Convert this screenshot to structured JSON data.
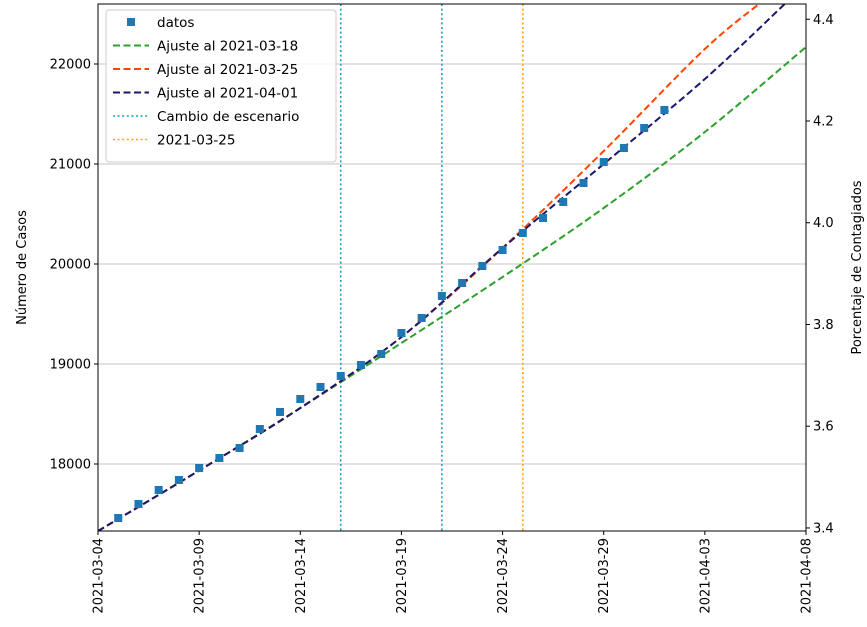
{
  "chart_data": {
    "type": "line",
    "title": "",
    "xlabel": "",
    "ylabel": "Número de Casos",
    "ylabel_right": "Porcentaje de Contagiados",
    "xlim": [
      "2021-03-04",
      "2021-04-08"
    ],
    "ylim": [
      17330,
      22600
    ],
    "ylim_right": [
      3.394,
      4.43
    ],
    "x_ticks": [
      "2021-03-04",
      "2021-03-09",
      "2021-03-14",
      "2021-03-19",
      "2021-03-24",
      "2021-03-29",
      "2021-04-03",
      "2021-04-08"
    ],
    "y_ticks": [
      18000,
      19000,
      20000,
      21000,
      22000
    ],
    "y_ticks_right": [
      3.4,
      3.6,
      3.8,
      4.0,
      4.2,
      4.4
    ],
    "grid": "horizontal",
    "legend_position": "top-left",
    "series": [
      {
        "name": "datos",
        "style": "markers",
        "color": "#1f77b4",
        "x": [
          "2021-03-05",
          "2021-03-06",
          "2021-03-07",
          "2021-03-08",
          "2021-03-09",
          "2021-03-10",
          "2021-03-11",
          "2021-03-12",
          "2021-03-13",
          "2021-03-14",
          "2021-03-15",
          "2021-03-16",
          "2021-03-17",
          "2021-03-18",
          "2021-03-19",
          "2021-03-20",
          "2021-03-21",
          "2021-03-22",
          "2021-03-23",
          "2021-03-24",
          "2021-03-25",
          "2021-03-26",
          "2021-03-27",
          "2021-03-28",
          "2021-03-29",
          "2021-03-30",
          "2021-03-31",
          "2021-04-01"
        ],
        "y": [
          17460,
          17600,
          17740,
          17840,
          17960,
          18060,
          18160,
          18350,
          18520,
          18650,
          18770,
          18880,
          18990,
          19100,
          19310,
          19460,
          19680,
          19810,
          19980,
          20140,
          20310,
          20460,
          20620,
          20810,
          21020,
          21160,
          21360,
          21540
        ]
      },
      {
        "name": "Ajuste al 2021-03-18",
        "style": "dashed",
        "color": "#2ca02c",
        "x": [
          "2021-03-04",
          "2021-03-09",
          "2021-03-14",
          "2021-03-19",
          "2021-03-24",
          "2021-03-29",
          "2021-04-03",
          "2021-04-08"
        ],
        "y": [
          17330,
          17935,
          18560,
          19210,
          19870,
          20560,
          21320,
          22170
        ]
      },
      {
        "name": "Ajuste al 2021-03-25",
        "style": "dashed",
        "color": "#ff4500",
        "x": [
          "2021-03-04",
          "2021-03-09",
          "2021-03-14",
          "2021-03-19",
          "2021-03-24",
          "2021-03-29",
          "2021-04-03",
          "2021-04-06"
        ],
        "y": [
          17330,
          17935,
          18560,
          19270,
          20160,
          21130,
          22150,
          22650
        ]
      },
      {
        "name": "Ajuste al 2021-04-01",
        "style": "dashed",
        "color": "#191970",
        "x": [
          "2021-03-04",
          "2021-03-09",
          "2021-03-14",
          "2021-03-19",
          "2021-03-24",
          "2021-03-29",
          "2021-04-03",
          "2021-04-07"
        ],
        "y": [
          17330,
          17935,
          18560,
          19270,
          20160,
          21000,
          21850,
          22610
        ]
      }
    ],
    "vertical_lines": [
      {
        "name": "Cambio de escenario",
        "color": "#17a2b8",
        "style": "dotted",
        "x": [
          "2021-03-16",
          "2021-03-21"
        ]
      },
      {
        "name": "2021-03-25",
        "color": "#ff9f1a",
        "style": "dotted",
        "x": [
          "2021-03-25"
        ]
      }
    ]
  }
}
